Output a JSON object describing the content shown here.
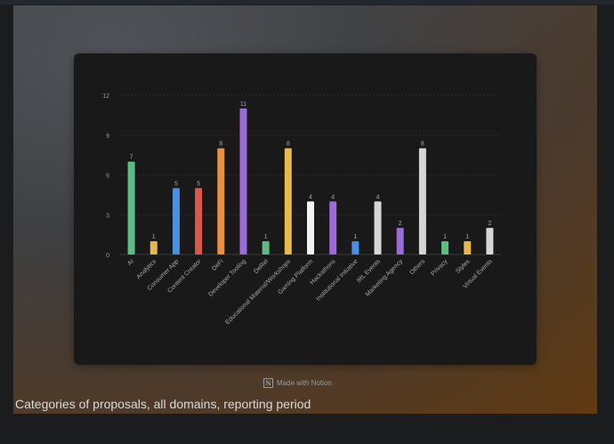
{
  "badge": {
    "icon": "notion-logo-icon",
    "text": "Made with Notion"
  },
  "caption": "Categories of proposals, all domains, reporting period",
  "chart_data": {
    "type": "bar",
    "title": "",
    "xlabel": "",
    "ylabel": "",
    "ylim": [
      0,
      12
    ],
    "yticks": [
      0,
      3,
      6,
      9,
      12
    ],
    "grid": true,
    "categories": [
      "AI",
      "Analytics",
      "Consumer App",
      "Content Creator",
      "DeFi",
      "Developer Tooling",
      "DeRel",
      "Educational Material/Workshops",
      "Gaming Platform",
      "Hackathons",
      "Institutional Initiative",
      "IRL Events",
      "Marketing Agency",
      "Others",
      "Privacy",
      "Styles",
      "Virtual Events"
    ],
    "values": [
      7,
      1,
      5,
      5,
      8,
      11,
      1,
      8,
      4,
      4,
      1,
      4,
      2,
      8,
      1,
      1,
      2
    ],
    "colors": [
      "#5dbb86",
      "#e8b84a",
      "#4a90e2",
      "#d8584e",
      "#ec8e3f",
      "#9b6bd6",
      "#5dbb86",
      "#e8b84a",
      "#f2f2f2",
      "#9b6bd6",
      "#4a90e2",
      "#d6d6d6",
      "#9b6bd6",
      "#d6d6d6",
      "#5dbb86",
      "#e8b84a",
      "#d6d6d6"
    ]
  }
}
